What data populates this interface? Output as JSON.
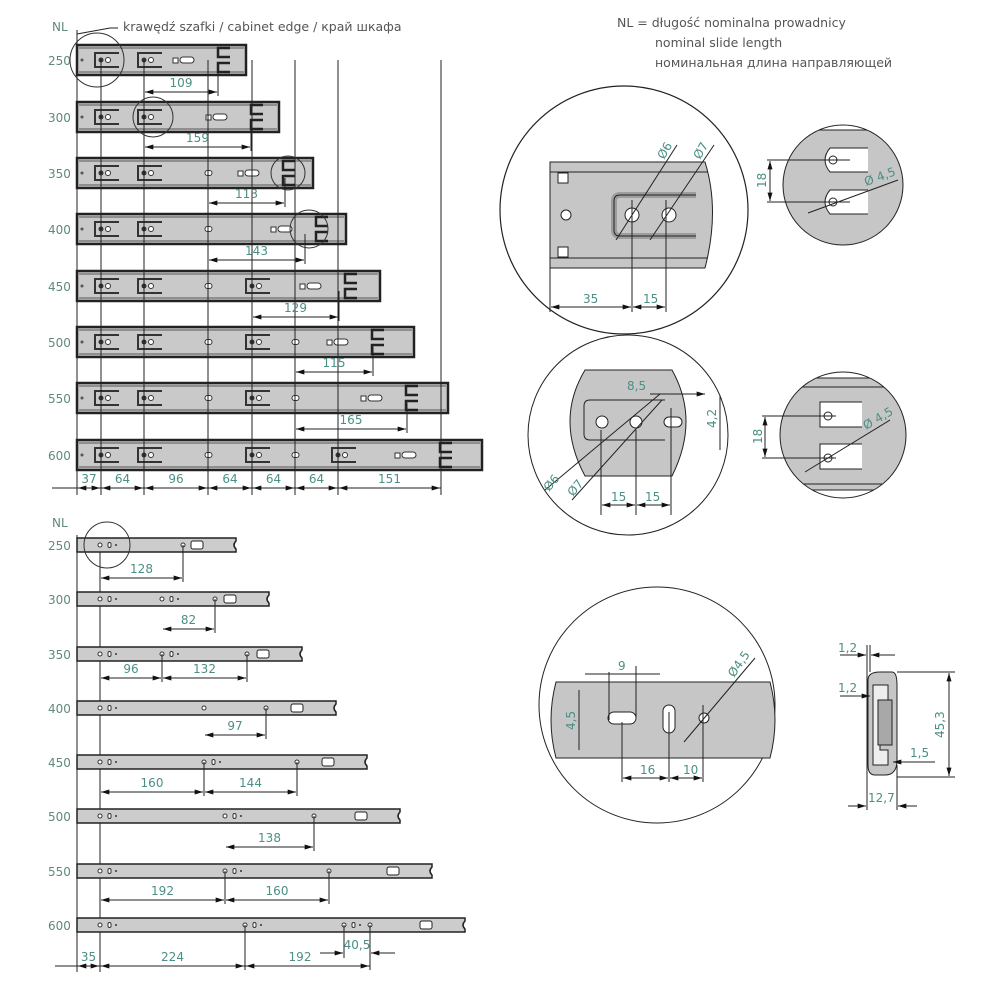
{
  "cabinet_edge_label": "krawędź szafki / cabinet edge / край шкафа",
  "legend": {
    "line1": "NL = długość nominalna prowadnicy",
    "line2": "nominal slide length",
    "line3": "номинальная длина направляющей"
  },
  "upper_diagram": {
    "axis_label": "NL",
    "lengths": [
      "250",
      "300",
      "350",
      "400",
      "450",
      "500",
      "550",
      "600"
    ],
    "rail_dimensions": [
      "109",
      "159",
      "113",
      "143",
      "129",
      "115",
      "165"
    ],
    "bottom_dimensions": [
      "37",
      "64",
      "96",
      "64",
      "64",
      "64",
      "151"
    ]
  },
  "lower_diagram": {
    "axis_label": "NL",
    "lengths": [
      "250",
      "300",
      "350",
      "400",
      "450",
      "500",
      "550",
      "600"
    ],
    "rail_dimensions": [
      [
        "128"
      ],
      [
        "82"
      ],
      [
        "96",
        "132"
      ],
      [
        "97"
      ],
      [
        "160",
        "144"
      ],
      [
        "138"
      ],
      [
        "192",
        "160"
      ],
      [
        "40,5"
      ]
    ],
    "bottom_dimensions": [
      "35",
      "224",
      "192"
    ]
  },
  "detail_front": {
    "dia_a": "Ø6",
    "dia_b": "Ø7",
    "dim_a": "35",
    "dim_b": "15"
  },
  "detail_rear_top": {
    "dim": "18",
    "dia": "Ø 4,5"
  },
  "detail_middle": {
    "dia_a": "Ø6",
    "dia_b": "Ø7",
    "dim_w": "8,5",
    "dim_h": "4,2",
    "dim_a": "15",
    "dim_b": "15"
  },
  "detail_rear_bottom": {
    "dim": "18",
    "dia": "Ø 4,5"
  },
  "detail_lower": {
    "dim_w": "9",
    "dim_h": "4,5",
    "dia": "Ø4,5",
    "dim_a": "16",
    "dim_b": "10"
  },
  "profile": {
    "t1": "1,2",
    "t2": "1,2",
    "height": "45,3",
    "gap": "1,5",
    "width": "12,7"
  },
  "colors": {
    "dimension_text": "#4b8f86",
    "rail_fill": "#c9c9c9",
    "line": "#222222"
  }
}
